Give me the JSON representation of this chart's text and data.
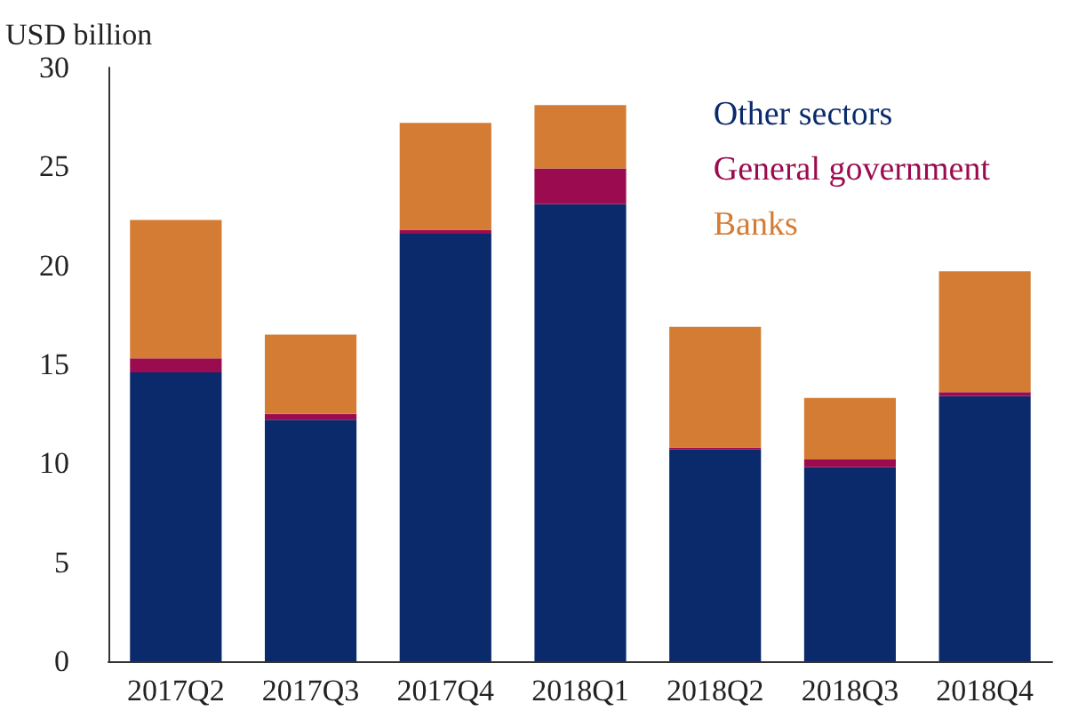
{
  "chart_data": {
    "type": "bar",
    "stacked": true,
    "ylabel": "USD billion",
    "categories": [
      "2017Q2",
      "2017Q3",
      "2017Q4",
      "2018Q1",
      "2018Q2",
      "2018Q3",
      "2018Q4"
    ],
    "series": [
      {
        "name": "Other sectors",
        "color": "#0a2a6b",
        "values": [
          14.6,
          12.2,
          21.6,
          23.1,
          10.7,
          9.8,
          13.4
        ]
      },
      {
        "name": "General government",
        "color": "#9b0b4f",
        "values": [
          0.7,
          0.3,
          0.2,
          1.8,
          0.1,
          0.4,
          0.2
        ]
      },
      {
        "name": "Banks",
        "color": "#d47c33",
        "values": [
          7.0,
          4.0,
          5.4,
          3.2,
          6.1,
          3.1,
          6.1
        ]
      }
    ],
    "ylim": [
      0,
      30
    ],
    "yticks": [
      0,
      5,
      10,
      15,
      20,
      25,
      30
    ],
    "grid": false,
    "legend": "top right"
  }
}
